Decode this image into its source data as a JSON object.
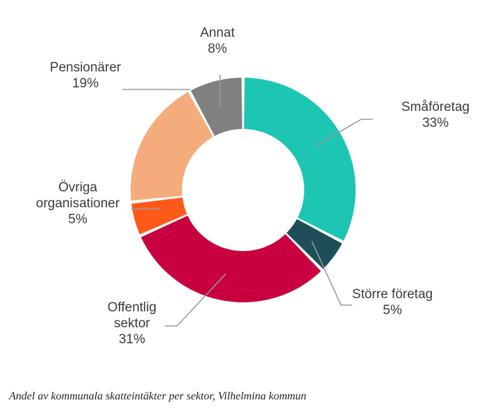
{
  "chart_data": {
    "type": "pie",
    "variant": "donut",
    "categories": [
      "Småföretag",
      "Större företag",
      "Offentlig sektor",
      "Övriga organisationer",
      "Pensionärer",
      "Annat"
    ],
    "values": [
      33,
      5,
      31,
      5,
      19,
      8
    ],
    "unit": "%",
    "labels": [
      {
        "lines": [
          "Småföretag"
        ],
        "value_text": "33%"
      },
      {
        "lines": [
          "Större företag"
        ],
        "value_text": "5%"
      },
      {
        "lines": [
          "Offentlig",
          "sektor"
        ],
        "value_text": "31%"
      },
      {
        "lines": [
          "Övriga",
          "organisationer"
        ],
        "value_text": "5%"
      },
      {
        "lines": [
          "Pensionärer"
        ],
        "value_text": "19%"
      },
      {
        "lines": [
          "Annat"
        ],
        "value_text": "8%"
      }
    ],
    "colors": [
      "#1cc6b3",
      "#1e4e58",
      "#c9003f",
      "#ff5a1a",
      "#f5ac7c",
      "#808080"
    ],
    "legend": "none"
  },
  "caption": "Andel av kommunala skatteintäkter per sektor, Vilhelmina kommun"
}
